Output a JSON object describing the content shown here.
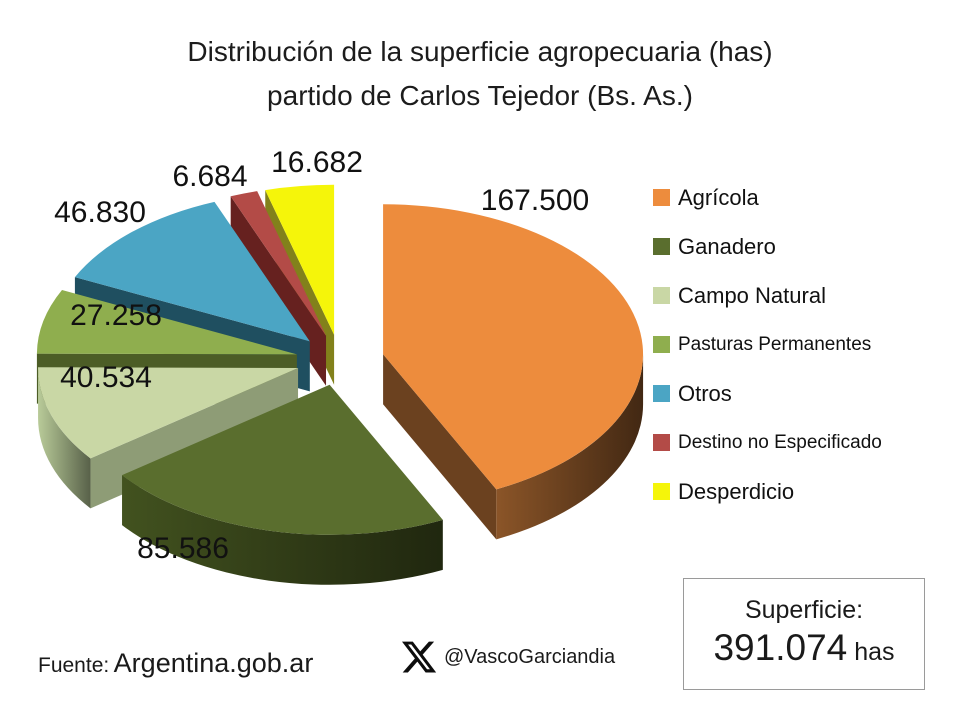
{
  "title": {
    "line1": "Distribución de la superficie agropecuaria (has)",
    "line2": "partido de Carlos Tejedor (Bs. As.)"
  },
  "chart_data": {
    "type": "pie",
    "style": "3d-exploded",
    "title": "Distribución de la superficie agropecuaria (has) partido de Carlos Tejedor (Bs. As.)",
    "unit": "has",
    "total": 391074,
    "start_angle_deg": 0,
    "direction": "clockwise",
    "legend_position": "right",
    "slices": [
      {
        "name": "Agrícola",
        "value": 167500,
        "label": "167.500",
        "color": "#ED8C3D",
        "side_color": "#6B411F"
      },
      {
        "name": "Ganadero",
        "value": 85586,
        "label": "85.586",
        "color": "#5A6E2E",
        "side_color": "#333F18"
      },
      {
        "name": "Campo Natural",
        "value": 40534,
        "label": "40.534",
        "color": "#C9D7A5",
        "side_color": "#8E9C76"
      },
      {
        "name": "Pasturas Permanentes",
        "value": 27258,
        "label": "27.258",
        "color": "#8FAE4E",
        "side_color": "#4C5D26"
      },
      {
        "name": "Otros",
        "value": 46830,
        "label": "46.830",
        "color": "#4BA5C4",
        "side_color": "#1F4F60"
      },
      {
        "name": "Destino no Especificado",
        "value": 6684,
        "label": "6.684",
        "color": "#B34B47",
        "side_color": "#66211F"
      },
      {
        "name": "Desperdicio",
        "value": 16682,
        "label": "16.682",
        "color": "#F5F50A",
        "side_color": "#82811B"
      }
    ]
  },
  "footer": {
    "source_label": "Fuente:",
    "source_value": "Argentina.gob.ar",
    "handle": "@VascoGarciandia"
  },
  "summary": {
    "label": "Superficie:",
    "value": "391.074",
    "unit": "has"
  }
}
